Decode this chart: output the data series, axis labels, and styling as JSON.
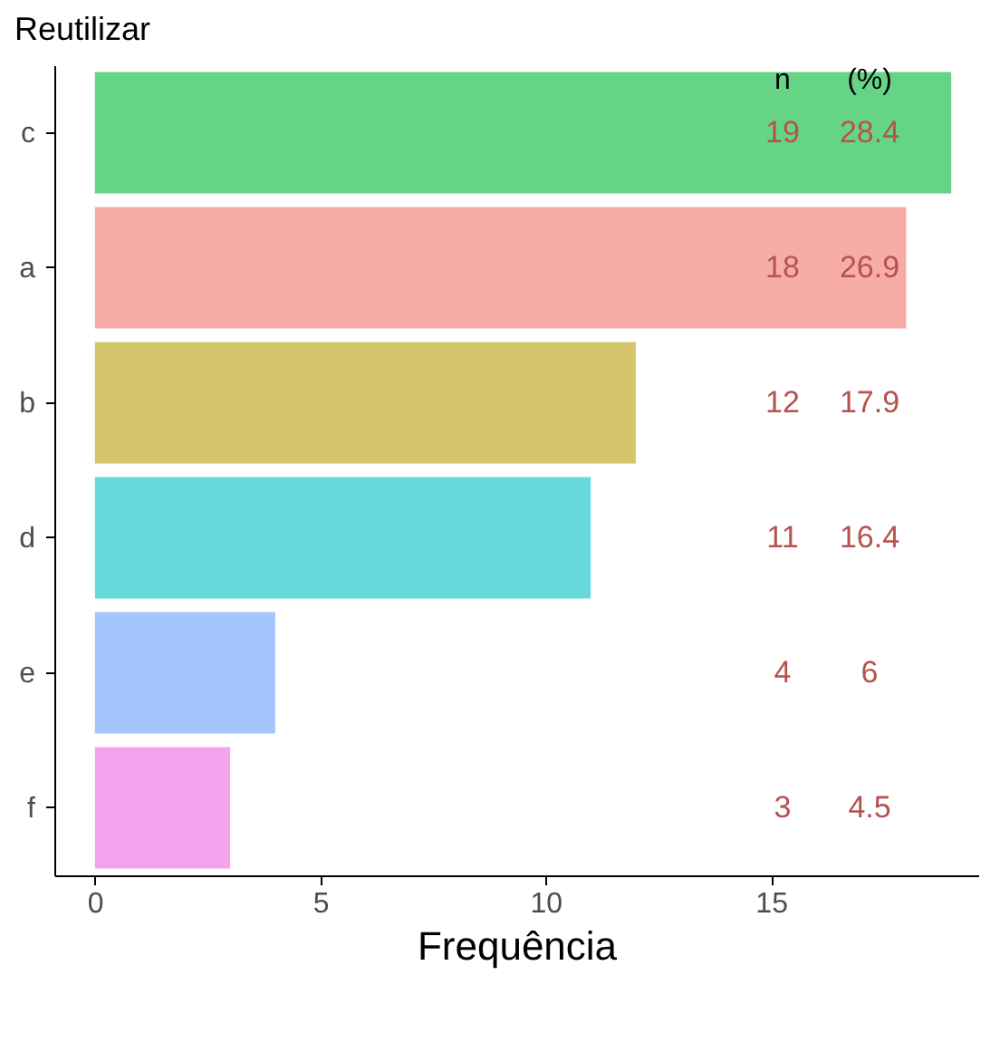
{
  "chart_data": {
    "type": "bar",
    "orientation": "horizontal",
    "title": "Reutilizar",
    "xlabel": "Frequência",
    "categories": [
      "c",
      "a",
      "b",
      "d",
      "e",
      "f"
    ],
    "values": [
      19,
      18,
      12,
      11,
      4,
      3
    ],
    "colors": [
      "#66d486",
      "#f8aca6",
      "#d4c46a",
      "#66d9dc",
      "#a4c4fc",
      "#f4a4ec"
    ],
    "xlim": [
      -0.9,
      19.6
    ],
    "xticks": [
      0,
      5,
      10,
      15
    ],
    "grid": false,
    "legend": false,
    "data_labels": true,
    "annotations": [
      "n",
      "(%)",
      "28.4",
      "26.9",
      "17.9",
      "16.4",
      "6",
      "4.5"
    ]
  }
}
